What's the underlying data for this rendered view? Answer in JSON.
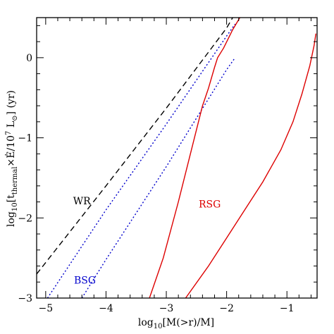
{
  "chart_data": {
    "type": "line",
    "xlabel_main": "log",
    "xlabel_sub": "10",
    "xlabel_tail": "[M(>r)/M]",
    "ylabel_main": "log",
    "ylabel_sub": "10",
    "ylabel_pre": "[t",
    "ylabel_sub2": "thermal",
    "ylabel_mid": "×Ė/10",
    "ylabel_sup": "7",
    "ylabel_L": " L",
    "ylabel_sun": "⊙",
    "ylabel_units": "]   (yr)",
    "xlim": [
      -5.15,
      -0.5
    ],
    "ylim": [
      -3,
      0.5
    ],
    "x_ticks": [
      -5,
      -4,
      -3,
      -2,
      -1
    ],
    "x_tick_labels": [
      "−5",
      "−4",
      "−3",
      "−2",
      "−1"
    ],
    "y_ticks": [
      -3,
      -2,
      -1,
      0
    ],
    "y_tick_labels": [
      "−3",
      "−2",
      "−1",
      "0"
    ],
    "grid": false,
    "annotations": [
      {
        "text": "WR",
        "x": -4.4,
        "y": -1.83,
        "color": "#000000"
      },
      {
        "text": "BSG",
        "x": -4.35,
        "y": -2.82,
        "color": "#0000cc"
      },
      {
        "text": "RSG",
        "x": -2.28,
        "y": -1.87,
        "color": "#dd0000"
      }
    ],
    "series": [
      {
        "label": "WR",
        "color": "#000000",
        "dash": "8,5",
        "x": [
          -5.15,
          -4.0,
          -3.0,
          -2.0,
          -1.9
        ],
        "y": [
          -2.7,
          -1.6,
          -0.63,
          0.37,
          0.5
        ]
      },
      {
        "label": "BSG",
        "color": "#0000cc",
        "dash": "2,3",
        "x": [
          -4.97,
          -4.0,
          -3.0,
          -2.0,
          -1.86
        ],
        "y": [
          -3.0,
          -1.9,
          -0.83,
          0.27,
          0.42
        ]
      },
      {
        "label": "BSG",
        "color": "#0000cc",
        "dash": "2,3",
        "x": [
          -4.4,
          -4.0,
          -3.0,
          -2.0,
          -1.86
        ],
        "y": [
          -3.0,
          -2.52,
          -1.36,
          -0.15,
          0.0
        ]
      },
      {
        "label": "RSG",
        "color": "#dd0000",
        "dash": "",
        "x": [
          -3.28,
          -3.05,
          -2.8,
          -2.55,
          -2.4,
          -2.3,
          -2.2,
          -2.15,
          -2.05,
          -1.9,
          -1.78
        ],
        "y": [
          -3.0,
          -2.5,
          -1.8,
          -1.05,
          -0.6,
          -0.38,
          -0.12,
          0.0,
          0.12,
          0.35,
          0.5
        ]
      },
      {
        "label": "RSG",
        "color": "#dd0000",
        "dash": "",
        "x": [
          -2.68,
          -2.3,
          -2.0,
          -1.7,
          -1.4,
          -1.1,
          -0.9,
          -0.75,
          -0.62,
          -0.55,
          -0.52
        ],
        "y": [
          -3.0,
          -2.6,
          -2.25,
          -1.9,
          -1.55,
          -1.15,
          -0.8,
          -0.45,
          -0.1,
          0.15,
          0.3
        ]
      }
    ]
  }
}
